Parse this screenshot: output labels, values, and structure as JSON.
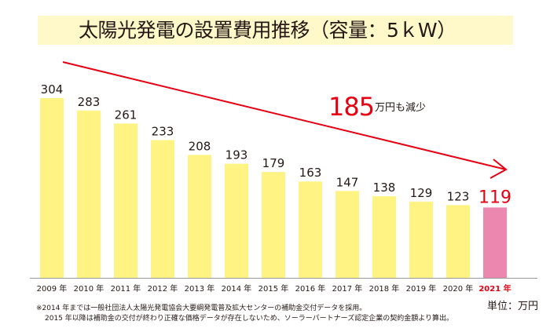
{
  "chart_data": {
    "type": "bar",
    "title": "太陽光発電の設置費用推移（容量：5ｋW）",
    "categories": [
      "2009 年",
      "2010 年",
      "2011 年",
      "2012 年",
      "2013 年",
      "2014 年",
      "2015 年",
      "2016 年",
      "2017 年",
      "2018 年",
      "2019 年",
      "2020 年",
      "2021 年"
    ],
    "values": [
      304,
      283,
      261,
      233,
      208,
      193,
      179,
      163,
      147,
      138,
      129,
      123,
      119
    ],
    "data_labels": [
      "304",
      "283",
      "261",
      "233",
      "208",
      "193",
      "179",
      "163",
      "147",
      "138",
      "129",
      "123",
      "119"
    ],
    "highlight_index": 12,
    "xlabel": "",
    "ylabel": "",
    "unit_label": "単位：万円",
    "ylim": [
      0,
      304
    ],
    "grid": false,
    "colors": {
      "bar": "#FFF384",
      "highlight_bar": "#EC87B0",
      "highlight_text": "#E60012",
      "arrow": "#E60012",
      "axis": "#999999",
      "title_background": "#FFF9C9"
    },
    "annotation": {
      "value": "185",
      "text": "万円も減少"
    }
  },
  "footnotes": [
    "※2014 年までは一般社団法人太陽光発電協会大要綱発電普及拡大センターの補助金交付データを採用。",
    "2015 年以降は補助金の交付が終わり正確な価格データが存在しないため、ソーラーパートナーズ認定企業の契約金額より算出。"
  ]
}
